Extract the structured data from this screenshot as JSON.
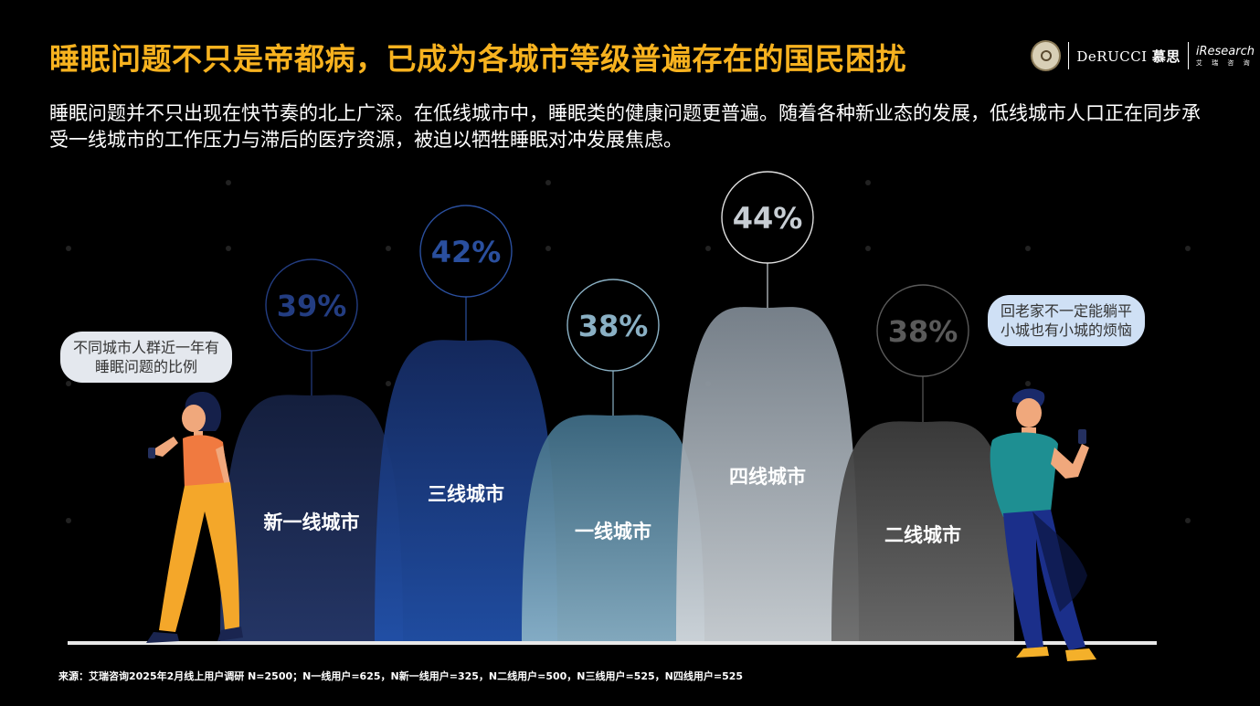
{
  "header": {
    "title": "睡眠问题不只是帝都病，已成为各城市等级普遍存在的国民困扰",
    "subtitle": "睡眠问题并不只出现在快节奏的北上广深。在低线城市中，睡眠类的健康问题更普遍。随着各种新业态的发展，低线城市人口正在同步承受一线城市的工作压力与滞后的医疗资源，被迫以牺牲睡眠对冲发展焦虑。"
  },
  "logos": {
    "brand_derucci": "DeRUCCI",
    "brand_derucci_cn": "慕思",
    "brand_iresearch": "iResearch",
    "brand_iresearch_cn": "艾 瑞 咨 询"
  },
  "bubbles": {
    "left": "不同城市人群近一年有\n睡眠问题的比例",
    "right": "回老家不一定能躺平\n小城也有小城的烦恼"
  },
  "chart_data": {
    "type": "bar",
    "title": "不同城市人群近一年有睡眠问题的比例",
    "categories": [
      "新一线城市",
      "三线城市",
      "一线城市",
      "四线城市",
      "二线城市"
    ],
    "values": [
      39,
      42,
      38,
      44,
      38
    ],
    "value_labels": [
      "39%",
      "42%",
      "38%",
      "44%",
      "38%"
    ],
    "colors": [
      "#1c2a55",
      "#1f4596",
      "#6a9ab4",
      "#a3adb8",
      "#585858"
    ],
    "label_colors": [
      "#233d82",
      "#2a4f9e",
      "#8ab0c4",
      "#c8ced4",
      "#5a5a5a"
    ],
    "ylim": [
      0,
      44
    ],
    "grid": false,
    "legend": "none"
  },
  "footer": {
    "source": "来源：艾瑞咨询2025年2月线上用户调研 N=2500；N一线用户=625，N新一线用户=325，N二线用户=500，N三线用户=525，N四线用户=525"
  }
}
